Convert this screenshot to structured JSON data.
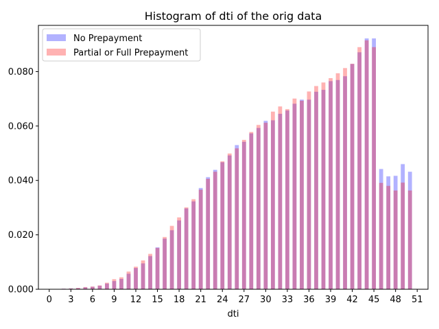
{
  "chart_data": {
    "type": "bar",
    "title": "Histogram of dti of the orig data",
    "xlabel": "dti",
    "ylabel": "",
    "xlim": [
      -1.5,
      52.5
    ],
    "ylim": [
      0,
      0.097
    ],
    "xticks": [
      0,
      3,
      6,
      9,
      12,
      15,
      18,
      21,
      24,
      27,
      30,
      33,
      36,
      39,
      42,
      45,
      48,
      51
    ],
    "yticks": [
      0.0,
      0.02,
      0.04,
      0.06,
      0.08
    ],
    "ytick_labels": [
      "0.000",
      "0.020",
      "0.040",
      "0.060",
      "0.080"
    ],
    "legend_position": "upper-left",
    "bar_width": 0.55,
    "x": [
      1,
      2,
      3,
      4,
      5,
      6,
      7,
      8,
      9,
      10,
      11,
      12,
      13,
      14,
      15,
      16,
      17,
      18,
      19,
      20,
      21,
      22,
      23,
      24,
      25,
      26,
      27,
      28,
      29,
      30,
      31,
      32,
      33,
      34,
      35,
      36,
      37,
      38,
      39,
      40,
      41,
      42,
      43,
      44,
      45,
      46,
      47,
      48,
      49,
      50
    ],
    "series": [
      {
        "name": "No Prepayment",
        "color": "#0000ff",
        "opacity": 0.3,
        "values": [
          0.0001,
          0.0002,
          0.0003,
          0.0004,
          0.0007,
          0.0009,
          0.0013,
          0.0021,
          0.003,
          0.0038,
          0.0057,
          0.0078,
          0.0095,
          0.0122,
          0.0154,
          0.0186,
          0.0217,
          0.0253,
          0.0297,
          0.0323,
          0.0372,
          0.0412,
          0.0439,
          0.0467,
          0.0492,
          0.053,
          0.0542,
          0.0573,
          0.0593,
          0.0619,
          0.0621,
          0.0645,
          0.0657,
          0.0682,
          0.0697,
          0.0697,
          0.0726,
          0.0733,
          0.0765,
          0.0769,
          0.0783,
          0.0828,
          0.0871,
          0.0922,
          0.0922,
          0.0442,
          0.0415,
          0.0417,
          0.046,
          0.0432
        ]
      },
      {
        "name": "Partial or Full Prepayment",
        "color": "#ff0000",
        "opacity": 0.3,
        "values": [
          0.0001,
          0.0002,
          0.0003,
          0.0005,
          0.0008,
          0.001,
          0.0014,
          0.0024,
          0.0037,
          0.0044,
          0.0065,
          0.0083,
          0.0106,
          0.013,
          0.0152,
          0.0192,
          0.0233,
          0.0264,
          0.0301,
          0.0331,
          0.0366,
          0.0406,
          0.0432,
          0.047,
          0.0499,
          0.0518,
          0.0549,
          0.0578,
          0.0604,
          0.0612,
          0.0653,
          0.0672,
          0.0662,
          0.0701,
          0.0693,
          0.0727,
          0.0747,
          0.076,
          0.0776,
          0.0794,
          0.0813,
          0.0829,
          0.089,
          0.0915,
          0.089,
          0.0391,
          0.038,
          0.0363,
          0.0392,
          0.0363
        ]
      }
    ]
  }
}
